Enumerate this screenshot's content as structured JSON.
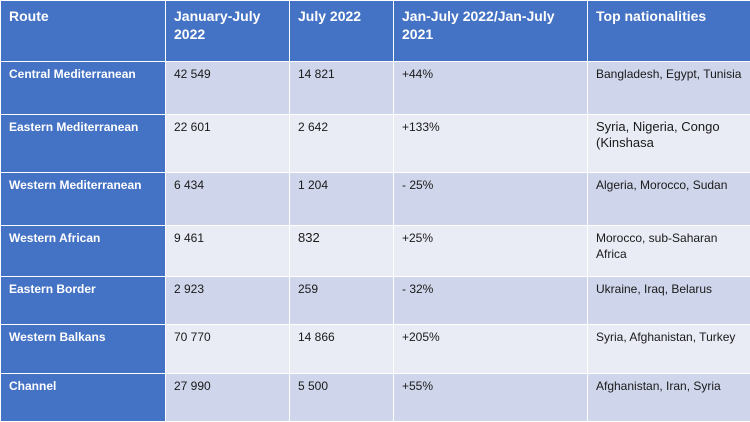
{
  "headers": [
    "Route",
    "January-July 2022",
    "July 2022",
    "Jan-July 2022/Jan-July 2021",
    "Top nationalities"
  ],
  "rows": [
    {
      "route": "Central Mediterranean",
      "jan_jul": "42 549",
      "jul": "14 821",
      "change": "+44%",
      "nationalities": "Bangladesh, Egypt, Tunisia"
    },
    {
      "route": "Eastern Mediterranean",
      "jan_jul": "22 601",
      "jul": "2 642",
      "change": "+133%",
      "nationalities": "Syria, Nigeria, Congo (Kinshasa"
    },
    {
      "route": "Western Mediterranean",
      "jan_jul": "6 434",
      "jul": "1 204",
      "change": "- 25%",
      "nationalities": "Algeria, Morocco, Sudan"
    },
    {
      "route": "Western African",
      "jan_jul": "9 461",
      "jul": "832",
      "change": "+25%",
      "nationalities": "Morocco, sub-Saharan Africa"
    },
    {
      "route": "Eastern Border",
      "jan_jul": "2 923",
      "jul": "259",
      "change": "- 32%",
      "nationalities": "Ukraine, Iraq, Belarus"
    },
    {
      "route": "Western Balkans",
      "jan_jul": "70 770",
      "jul": "14 866",
      "change": "+205%",
      "nationalities": "Syria, Afghanistan, Turkey"
    },
    {
      "route": "Channel",
      "jan_jul": "27 990",
      "jul": "5 500",
      "change": "+55%",
      "nationalities": "Afghanistan, Iran, Syria"
    }
  ]
}
